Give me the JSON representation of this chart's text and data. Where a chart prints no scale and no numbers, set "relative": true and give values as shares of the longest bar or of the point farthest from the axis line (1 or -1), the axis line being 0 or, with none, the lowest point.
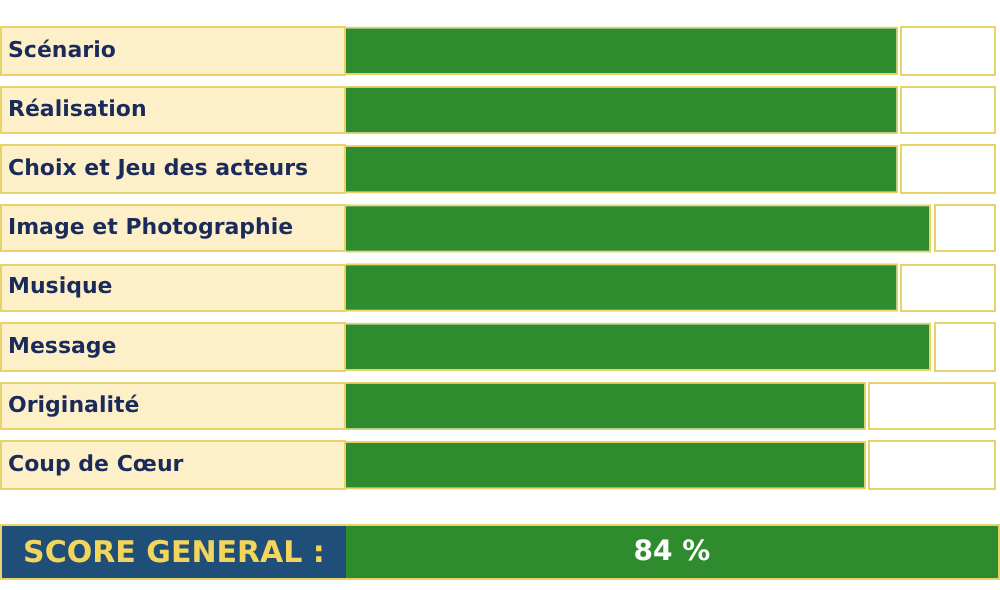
{
  "chart_data": {
    "type": "bar",
    "orientation": "horizontal",
    "relative": true,
    "categories": [
      "Scénario",
      "Réalisation",
      "Choix et Jeu des acteurs",
      "Image et Photographie",
      "Musique",
      "Message",
      "Originalité",
      "Coup de Cœur"
    ],
    "values": [
      0.944,
      0.944,
      0.944,
      1,
      0.944,
      1,
      0.889,
      0.889
    ],
    "color": "#2e8b2e",
    "annotations": [
      "SCORE GENERAL :",
      "84 %"
    ]
  }
}
